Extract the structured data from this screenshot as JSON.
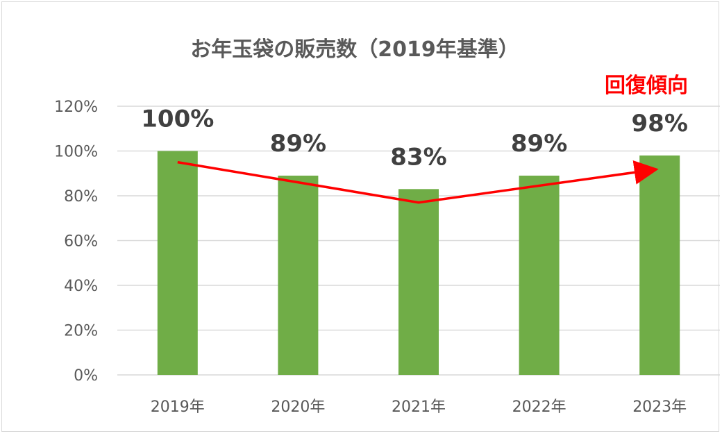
{
  "chart_data": {
    "type": "bar",
    "title": "お年玉袋の販売数（2019年基準）",
    "categories": [
      "2019年",
      "2020年",
      "2021年",
      "2022年",
      "2023年"
    ],
    "values": [
      100,
      89,
      83,
      89,
      98
    ],
    "data_labels": [
      "100%",
      "89%",
      "83%",
      "89%",
      "98%"
    ],
    "ylim": [
      0,
      120
    ],
    "yticks": [
      0,
      20,
      40,
      60,
      80,
      100,
      120
    ],
    "ytick_labels": [
      "0%",
      "20%",
      "40%",
      "60%",
      "80%",
      "100%",
      "120%"
    ],
    "grid": true,
    "bar_color": "#70ad47",
    "trend_arrow": {
      "values": [
        95,
        77,
        92
      ],
      "color": "#ff0000"
    },
    "annotation": {
      "text": "回復傾向",
      "color": "#ff0000"
    }
  }
}
